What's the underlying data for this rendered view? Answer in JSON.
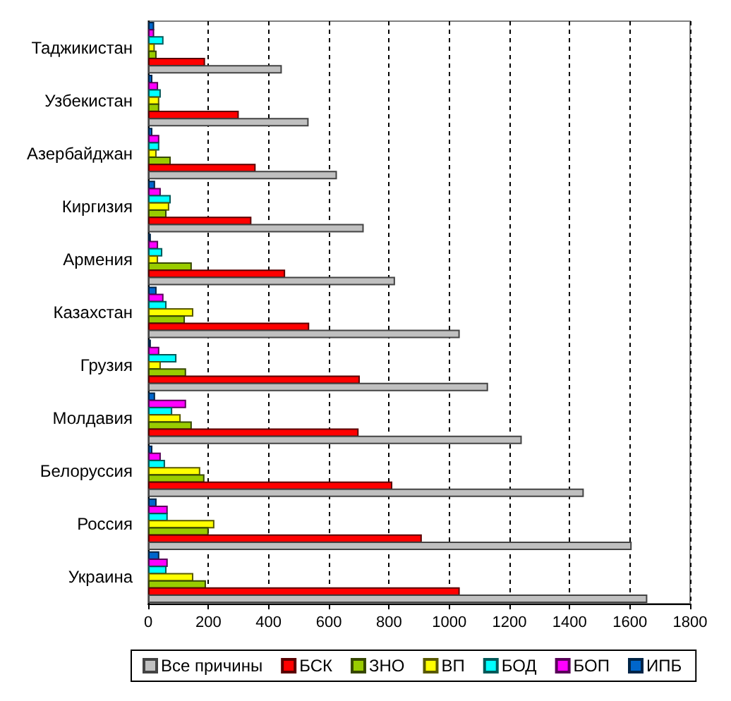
{
  "chart_data": {
    "type": "bar",
    "orientation": "horizontal",
    "categories": [
      "Таджикистан",
      "Узбекистан",
      "Азербайджан",
      "Киргизия",
      "Армения",
      "Казахстан",
      "Грузия",
      "Молдавия",
      "Белоруссия",
      "Россия",
      "Украина"
    ],
    "series": [
      {
        "name": "Все причины",
        "color": "#c0c0c0",
        "values": [
          444,
          533,
          627,
          716,
          820,
          1035,
          1129,
          1241,
          1447,
          1606,
          1658
        ]
      },
      {
        "name": "БСК",
        "color": "#ff0000",
        "values": [
          189,
          301,
          357,
          343,
          455,
          535,
          703,
          699,
          811,
          909,
          1035
        ]
      },
      {
        "name": "ЗНО",
        "color": "#99cc00",
        "values": [
          28,
          37,
          75,
          61,
          145,
          122,
          126,
          145,
          187,
          201,
          192
        ]
      },
      {
        "name": "ВП",
        "color": "#ffff00",
        "values": [
          22,
          37,
          28,
          70,
          33,
          150,
          42,
          108,
          173,
          220,
          150
        ]
      },
      {
        "name": "БОД",
        "color": "#00ffff",
        "values": [
          51,
          42,
          37,
          75,
          47,
          61,
          94,
          80,
          56,
          65,
          61
        ]
      },
      {
        "name": "БОП",
        "color": "#ff00ff",
        "values": [
          20,
          33,
          37,
          42,
          33,
          51,
          37,
          126,
          42,
          65,
          65
        ]
      },
      {
        "name": "ИПБ",
        "color": "#0066cc",
        "values": [
          20,
          14,
          14,
          23,
          9,
          28,
          9,
          23,
          14,
          28,
          37
        ]
      }
    ],
    "xlim": [
      0,
      1800
    ],
    "xticks": [
      0,
      200,
      400,
      600,
      800,
      1000,
      1200,
      1400,
      1600,
      1800
    ],
    "grid": "x",
    "legend": "bottom"
  }
}
